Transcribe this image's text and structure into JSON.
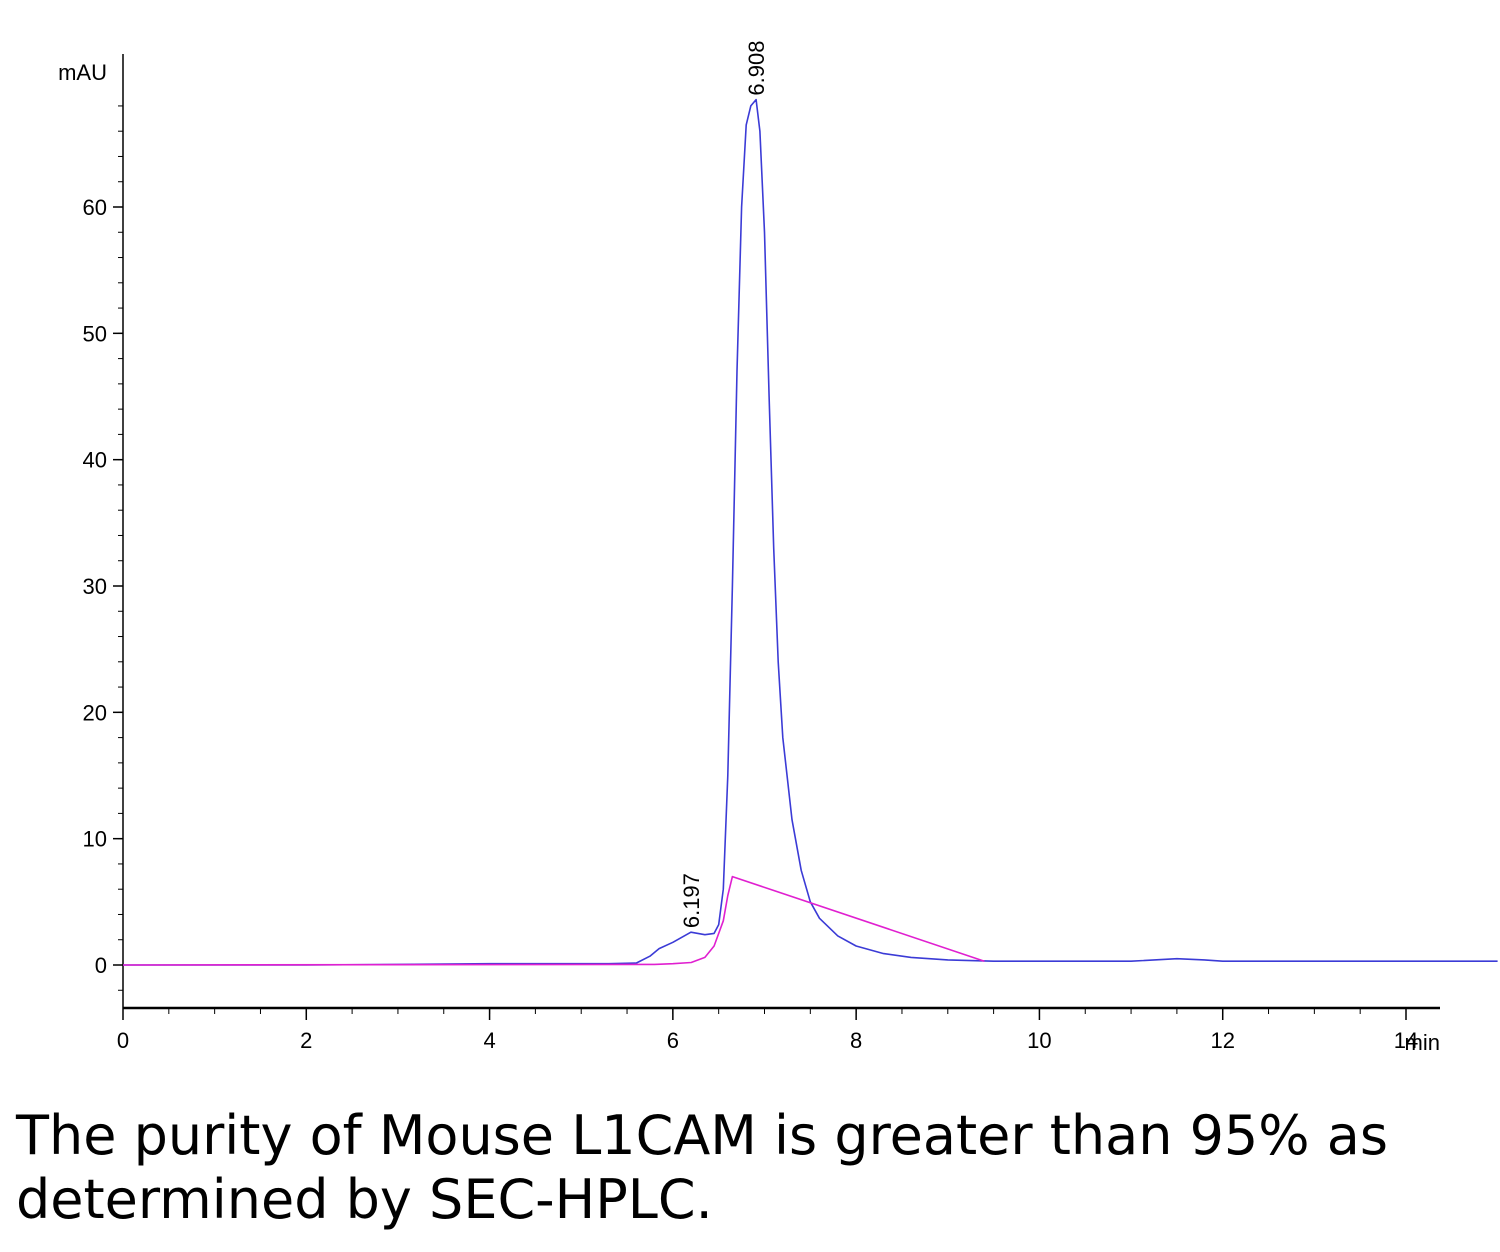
{
  "chart_data": {
    "type": "line",
    "xlabel": "min",
    "ylabel": "mAU",
    "xlim": [
      0,
      15
    ],
    "ylim": [
      -3.5,
      70
    ],
    "x_ticks": [
      0,
      2,
      4,
      6,
      8,
      10,
      12,
      14
    ],
    "y_ticks": [
      0,
      10,
      20,
      30,
      40,
      50,
      60
    ],
    "grid": false,
    "colors": {
      "signal": "#3b3bd6",
      "baseline": "#e020d0",
      "axis": "#000000"
    },
    "series": [
      {
        "x": [
          0,
          1,
          2,
          3,
          4,
          5,
          5.3,
          5.6,
          5.75,
          5.85,
          6.0,
          6.197,
          6.35,
          6.45,
          6.5,
          6.55,
          6.6,
          6.65,
          6.7,
          6.75,
          6.8,
          6.85,
          6.908,
          6.95,
          7.0,
          7.05,
          7.1,
          7.15,
          7.2,
          7.3,
          7.4,
          7.5,
          7.6,
          7.8,
          8.0,
          8.3,
          8.6,
          9.0,
          9.5,
          10,
          11,
          11.5,
          11.8,
          12,
          13,
          14,
          15
        ],
        "y": [
          0,
          0,
          0,
          0.05,
          0.1,
          0.1,
          0.1,
          0.15,
          0.7,
          1.3,
          1.8,
          2.6,
          2.4,
          2.5,
          3.2,
          6,
          15,
          30,
          47,
          60,
          66.5,
          68,
          68.5,
          66,
          58,
          45,
          33,
          24,
          18,
          11.5,
          7.5,
          5,
          3.7,
          2.3,
          1.5,
          0.9,
          0.6,
          0.4,
          0.3,
          0.3,
          0.3,
          0.5,
          0.4,
          0.3,
          0.3,
          0.3,
          0.3
        ]
      },
      {
        "x": [
          0,
          5.8,
          6.0,
          6.2,
          6.35,
          6.45,
          6.55,
          6.6,
          6.65,
          9.4
        ],
        "y": [
          0,
          0.05,
          0.1,
          0.2,
          0.6,
          1.5,
          3.5,
          5.5,
          7,
          0.3
        ]
      }
    ],
    "peaks": [
      {
        "label": "6.197",
        "x": 6.197,
        "y": 2.6
      },
      {
        "label": "6.908",
        "x": 6.908,
        "y": 68.5
      }
    ]
  },
  "caption": "The purity of Mouse L1CAM is greater than 95% as determined by SEC-HPLC."
}
